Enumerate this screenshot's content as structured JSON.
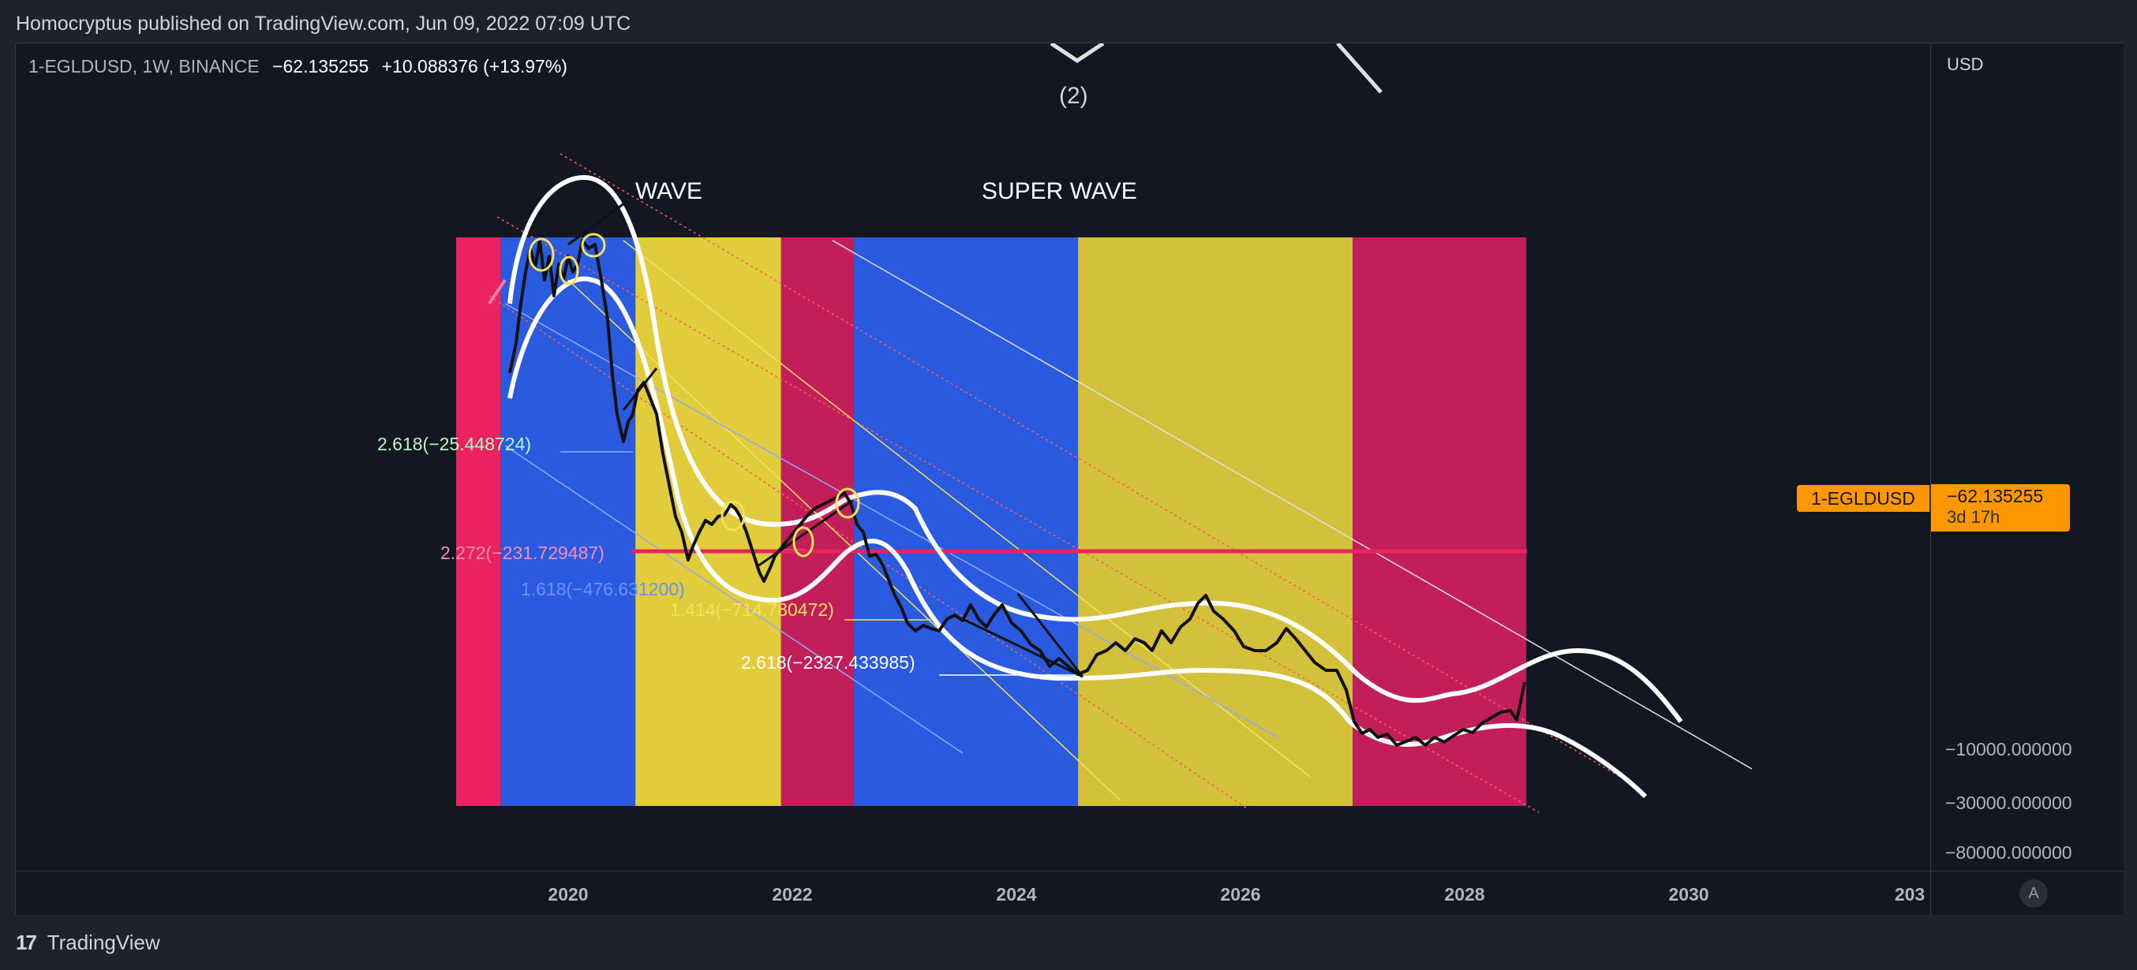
{
  "header": {
    "published": "Homocryptus published on TradingView.com, Jun 09, 2022 07:09 UTC"
  },
  "legend": {
    "symbol": "1-EGLDUSD, 1W, BINANCE",
    "value": "−62.135255",
    "change": "+10.088376 (+13.97%)"
  },
  "price_axis": {
    "currency": "USD",
    "ticks": [
      "−10000.000000",
      "−30000.000000",
      "−80000.000000"
    ],
    "last_value": "−62.135255",
    "countdown": "3d 17h",
    "symbol_tag": "1-EGLDUSD",
    "tag_color": "#ff9800"
  },
  "time_axis": {
    "ticks": [
      "2020",
      "2022",
      "2024",
      "2026",
      "2028",
      "2030",
      "203"
    ],
    "auto_button": "A"
  },
  "footer": {
    "brand": "TradingView",
    "logo": "17"
  },
  "chart_data": {
    "type": "line",
    "symbol": "1-EGLDUSD",
    "timeframe": "1W",
    "exchange": "BINANCE",
    "last": -62.135255,
    "change": 10.088376,
    "change_pct": 13.97,
    "x_range": [
      2018.5,
      2031.6
    ],
    "bands": [
      {
        "from": 2019.0,
        "to": 2019.4,
        "color": "#e8235f"
      },
      {
        "from": 2019.4,
        "to": 2020.6,
        "color": "#2a5ae0"
      },
      {
        "from": 2020.6,
        "to": 2021.9,
        "color": "#e1cd3b"
      },
      {
        "from": 2021.9,
        "to": 2022.55,
        "color": "#c21f5a"
      },
      {
        "from": 2022.55,
        "to": 2024.55,
        "color": "#2a5ae0"
      },
      {
        "from": 2024.55,
        "to": 2027.0,
        "color": "#d3c13c"
      },
      {
        "from": 2027.0,
        "to": 2028.55,
        "color": "#c21f5a"
      }
    ],
    "annotations": {
      "wave": "WAVE",
      "super_wave": "SUPER WAVE",
      "count": "(2)"
    },
    "fib_levels": [
      {
        "label": "2.618(−25.448724)",
        "color": "#b9f6ca"
      },
      {
        "label": "2.272(−231.729487)",
        "color": "#f48fb1"
      },
      {
        "label": "1.618(−476.631200)",
        "color": "#6f8fff"
      },
      {
        "label": "1.414(−714.780472)",
        "color": "#f5e05c"
      },
      {
        "label": "2.618(−2327.433985)",
        "color": "#ffffff"
      }
    ],
    "horizontal_line_color": "#e8235f"
  }
}
